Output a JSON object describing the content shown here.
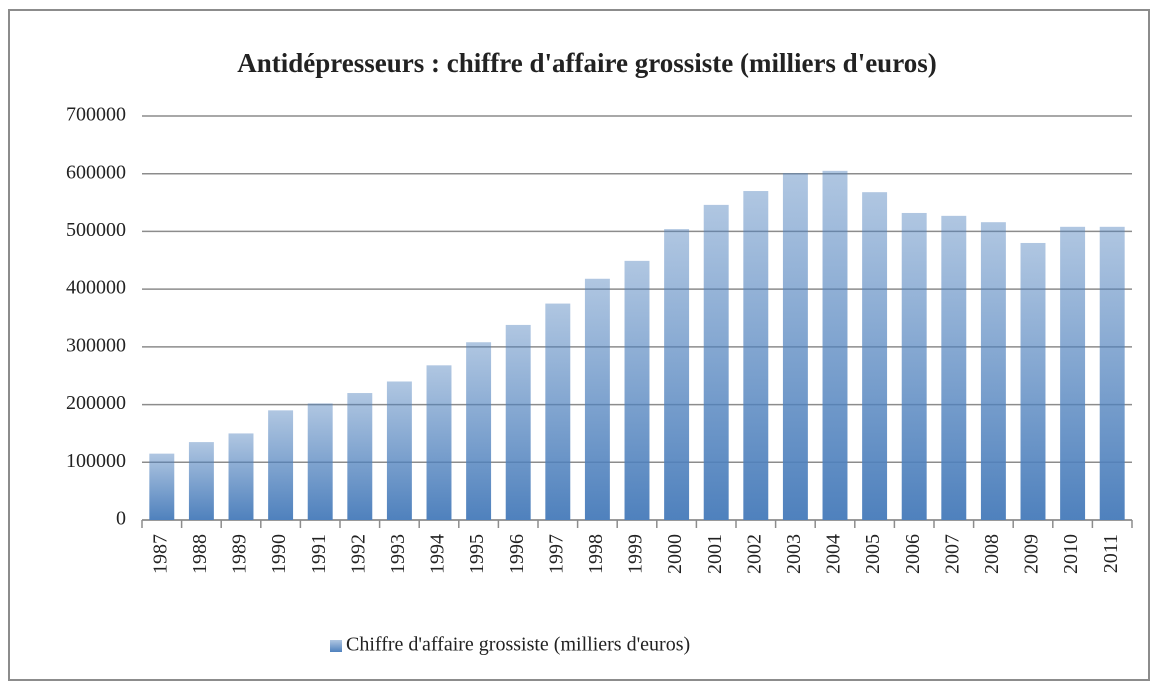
{
  "chart_data": {
    "type": "bar",
    "title": "Antidépresseurs : chiffre d'affaire grossiste (milliers d'euros)",
    "categories": [
      "1987",
      "1988",
      "1989",
      "1990",
      "1991",
      "1992",
      "1993",
      "1994",
      "1995",
      "1996",
      "1997",
      "1998",
      "1999",
      "2000",
      "2001",
      "2002",
      "2003",
      "2004",
      "2005",
      "2006",
      "2007",
      "2008",
      "2009",
      "2010",
      "2011"
    ],
    "series": [
      {
        "name": "Chiffre d'affaire grossiste (milliers d'euros)",
        "color": "#4f81bd",
        "values": [
          115000,
          135000,
          150000,
          190000,
          202000,
          220000,
          240000,
          268000,
          308000,
          338000,
          375000,
          418000,
          449000,
          504000,
          546000,
          570000,
          601000,
          605000,
          568000,
          532000,
          527000,
          516000,
          480000,
          508000,
          508000
        ]
      }
    ],
    "ylim": [
      0,
      700000
    ],
    "yticks": [
      0,
      100000,
      200000,
      300000,
      400000,
      500000,
      600000,
      700000
    ],
    "grid": true,
    "legend": "bottom"
  }
}
